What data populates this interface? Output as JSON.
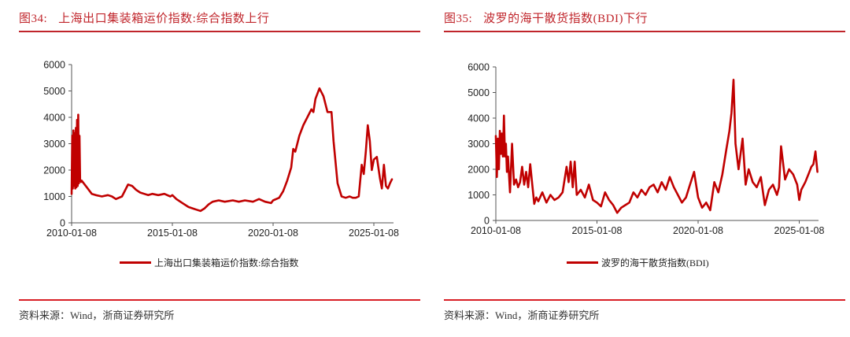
{
  "panels": [
    {
      "figure_no": "图34:",
      "title": "上海出口集装箱运价指数:综合指数上行",
      "legend": "上海出口集装箱运价指数:综合指数",
      "source": "资料来源：Wind，浙商证券研究所"
    },
    {
      "figure_no": "图35:",
      "title": "波罗的海干散货指数(BDI)下行",
      "legend": "波罗的海干散货指数(BDI)",
      "source": "资料来源：Wind，浙商证券研究所"
    }
  ],
  "colors": {
    "accent": "#c0252b",
    "series": "#c00000",
    "axis": "#555555"
  },
  "chart_data": [
    {
      "type": "line",
      "title": "上海出口集装箱运价指数:综合指数上行",
      "xlabel": "",
      "ylabel": "",
      "ylim": [
        0,
        6000
      ],
      "yticks": [
        0,
        1000,
        2000,
        3000,
        4000,
        5000,
        6000
      ],
      "xticks": [
        "2010-01-08",
        "2015-01-08",
        "2020-01-08",
        "2025-01-08"
      ],
      "xrange_years": [
        2010.0,
        2026.0
      ],
      "grid": false,
      "legend_position": "bottom",
      "series": [
        {
          "name": "上海出口集装箱运价指数:综合指数",
          "x": [
            2010.0,
            2010.03,
            2010.06,
            2010.09,
            2010.12,
            2010.15,
            2010.18,
            2010.21,
            2010.24,
            2010.27,
            2010.3,
            2010.33,
            2010.36,
            2010.39,
            2010.42,
            2010.46,
            2010.5,
            2010.6,
            2010.8,
            2011.0,
            2011.2,
            2011.5,
            2011.8,
            2012.0,
            2012.2,
            2012.5,
            2012.8,
            2013.0,
            2013.2,
            2013.4,
            2013.6,
            2013.8,
            2014.0,
            2014.3,
            2014.6,
            2014.9,
            2015.0,
            2015.2,
            2015.5,
            2015.8,
            2016.0,
            2016.2,
            2016.4,
            2016.6,
            2016.8,
            2017.0,
            2017.3,
            2017.6,
            2018.0,
            2018.3,
            2018.6,
            2019.0,
            2019.3,
            2019.6,
            2019.9,
            2020.0,
            2020.3,
            2020.5,
            2020.7,
            2020.9,
            2021.0,
            2021.1,
            2021.3,
            2021.5,
            2021.7,
            2021.9,
            2022.0,
            2022.1,
            2022.3,
            2022.5,
            2022.7,
            2022.9,
            2023.0,
            2023.2,
            2023.4,
            2023.6,
            2023.8,
            2023.95,
            2024.1,
            2024.25,
            2024.4,
            2024.5,
            2024.6,
            2024.7,
            2024.8,
            2024.9,
            2025.0,
            2025.15,
            2025.3,
            2025.4,
            2025.5,
            2025.6,
            2025.7,
            2025.8,
            2025.9
          ],
          "values": [
            1100,
            3300,
            1300,
            3500,
            1400,
            3400,
            1300,
            3600,
            1350,
            3900,
            1400,
            4100,
            1500,
            3300,
            1600,
            1550,
            1600,
            1500,
            1300,
            1100,
            1050,
            1000,
            1050,
            1000,
            900,
            1000,
            1450,
            1400,
            1250,
            1150,
            1100,
            1050,
            1100,
            1050,
            1100,
            1000,
            1050,
            900,
            750,
            600,
            550,
            500,
            450,
            550,
            700,
            800,
            850,
            800,
            850,
            800,
            850,
            800,
            900,
            800,
            750,
            850,
            950,
            1200,
            1600,
            2100,
            2800,
            2700,
            3300,
            3700,
            4000,
            4300,
            4200,
            4700,
            5100,
            4800,
            4200,
            4200,
            3100,
            1500,
            1000,
            950,
            1000,
            950,
            950,
            1000,
            2200,
            1850,
            2700,
            3700,
            3100,
            2000,
            2400,
            2500,
            1700,
            1300,
            2200,
            1400,
            1300,
            1500,
            1650
          ]
        }
      ]
    },
    {
      "type": "line",
      "title": "波罗的海干散货指数(BDI)下行",
      "xlabel": "",
      "ylabel": "",
      "ylim": [
        0,
        6000
      ],
      "yticks": [
        0,
        1000,
        2000,
        3000,
        4000,
        5000,
        6000
      ],
      "xticks": [
        "2010-01-08",
        "2015-01-08",
        "2020-01-08",
        "2025-01-08"
      ],
      "xrange_years": [
        2010.0,
        2026.0
      ],
      "grid": false,
      "legend_position": "bottom",
      "series": [
        {
          "name": "波罗的海干散货指数(BDI)",
          "x": [
            2010.0,
            2010.05,
            2010.1,
            2010.15,
            2010.2,
            2010.25,
            2010.3,
            2010.35,
            2010.4,
            2010.45,
            2010.5,
            2010.55,
            2010.6,
            2010.7,
            2010.8,
            2010.9,
            2011.0,
            2011.1,
            2011.2,
            2011.3,
            2011.4,
            2011.5,
            2011.6,
            2011.7,
            2011.8,
            2011.9,
            2012.0,
            2012.1,
            2012.3,
            2012.5,
            2012.7,
            2012.9,
            2013.1,
            2013.3,
            2013.5,
            2013.6,
            2013.7,
            2013.8,
            2013.9,
            2014.0,
            2014.1,
            2014.2,
            2014.4,
            2014.6,
            2014.8,
            2015.0,
            2015.2,
            2015.4,
            2015.6,
            2015.8,
            2016.0,
            2016.2,
            2016.4,
            2016.6,
            2016.8,
            2017.0,
            2017.2,
            2017.4,
            2017.6,
            2017.8,
            2018.0,
            2018.2,
            2018.4,
            2018.6,
            2018.8,
            2019.0,
            2019.2,
            2019.4,
            2019.6,
            2019.8,
            2020.0,
            2020.2,
            2020.4,
            2020.6,
            2020.8,
            2021.0,
            2021.2,
            2021.4,
            2021.55,
            2021.65,
            2021.75,
            2021.85,
            2022.0,
            2022.2,
            2022.35,
            2022.5,
            2022.7,
            2022.9,
            2023.1,
            2023.3,
            2023.5,
            2023.7,
            2023.9,
            2024.0,
            2024.1,
            2024.3,
            2024.5,
            2024.7,
            2024.9,
            2025.0,
            2025.1,
            2025.3,
            2025.5,
            2025.6,
            2025.7,
            2025.8,
            2025.9
          ],
          "values": [
            3300,
            1700,
            3200,
            2000,
            3500,
            2600,
            3400,
            2500,
            4100,
            2500,
            3000,
            1900,
            2500,
            1100,
            3000,
            1400,
            1600,
            1300,
            1500,
            2100,
            1400,
            1900,
            1300,
            2200,
            1400,
            650,
            900,
            750,
            1100,
            700,
            1000,
            800,
            900,
            1100,
            2100,
            1500,
            2300,
            1300,
            2300,
            1000,
            1100,
            1200,
            900,
            1400,
            800,
            700,
            550,
            1100,
            800,
            600,
            300,
            500,
            600,
            700,
            1100,
            900,
            1200,
            1000,
            1300,
            1400,
            1100,
            1500,
            1200,
            1700,
            1300,
            1000,
            700,
            900,
            1400,
            1900,
            900,
            500,
            700,
            400,
            1500,
            1100,
            1800,
            2800,
            3500,
            4200,
            5500,
            3000,
            2000,
            3200,
            1400,
            2000,
            1500,
            1300,
            1700,
            600,
            1200,
            1400,
            1000,
            1300,
            2900,
            1600,
            2000,
            1800,
            1400,
            800,
            1200,
            1500,
            1900,
            2100,
            2200,
            2700,
            1900
          ]
        }
      ]
    }
  ]
}
